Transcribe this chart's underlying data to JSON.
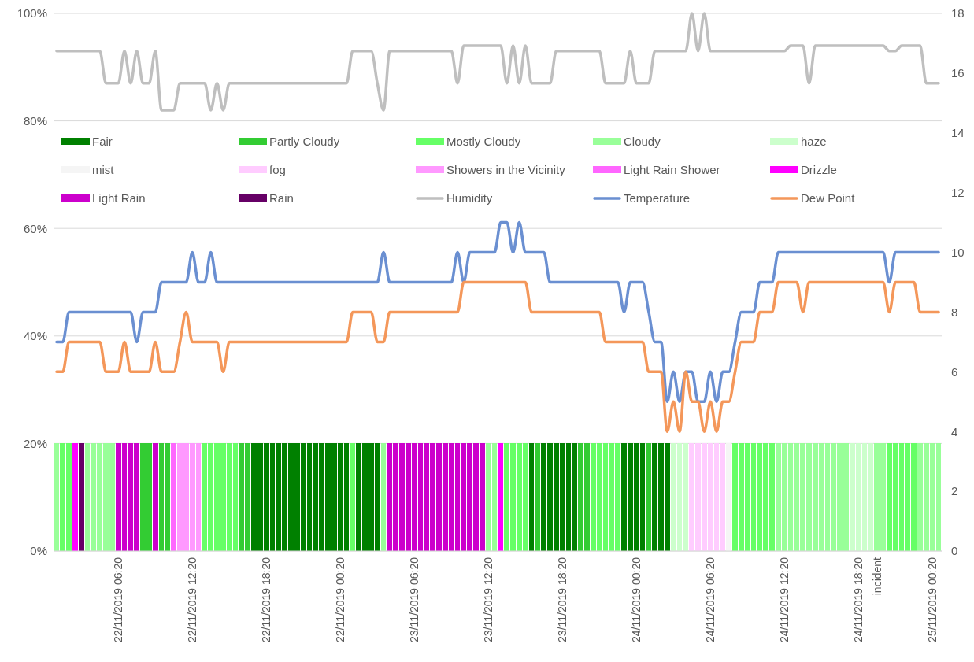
{
  "chart_data": {
    "type": "bar",
    "stacked": true,
    "grid": "y",
    "legend": "top",
    "categories": [
      null,
      null,
      null,
      null,
      null,
      null,
      null,
      null,
      null,
      null,
      "22/11/2019 06:20",
      null,
      null,
      null,
      null,
      null,
      null,
      null,
      null,
      null,
      null,
      null,
      "22/11/2019 12:20",
      null,
      null,
      null,
      null,
      null,
      null,
      null,
      null,
      null,
      null,
      null,
      "22/11/2019 18:20",
      null,
      null,
      null,
      null,
      null,
      null,
      null,
      null,
      null,
      null,
      null,
      "22/11/2019 00:20",
      null,
      null,
      null,
      null,
      null,
      null,
      null,
      null,
      null,
      null,
      null,
      "23/11/2019 06:20",
      null,
      null,
      null,
      null,
      null,
      null,
      null,
      null,
      null,
      null,
      null,
      "23/11/2019 12:20",
      null,
      null,
      null,
      null,
      null,
      null,
      null,
      null,
      null,
      null,
      null,
      "23/11/2019 18:20",
      null,
      null,
      null,
      null,
      null,
      null,
      null,
      null,
      null,
      null,
      null,
      "24/11/2019 00:20",
      null,
      null,
      null,
      null,
      null,
      null,
      null,
      null,
      null,
      null,
      null,
      "24/11/2019 06:20",
      null,
      null,
      null,
      null,
      null,
      null,
      null,
      null,
      null,
      null,
      null,
      "24/11/2019 12:20",
      null,
      null,
      null,
      null,
      null,
      null,
      null,
      null,
      null,
      null,
      null,
      "24/11/2019 18:20",
      null,
      null,
      "incident",
      null,
      null,
      null,
      null,
      null,
      null,
      null,
      null,
      "25/11/2019 00:20",
      null
    ],
    "ylim": [
      0,
      100
    ],
    "yticks": [
      {
        "value": 0,
        "label": "0%"
      },
      {
        "value": 20,
        "label": "20%"
      },
      {
        "value": 40,
        "label": "40%"
      },
      {
        "value": 60,
        "label": "60%"
      },
      {
        "value": 80,
        "label": "80%"
      },
      {
        "value": 100,
        "label": "100%"
      }
    ],
    "y2lim": [
      0,
      18
    ],
    "y2ticks": [
      0,
      2,
      4,
      6,
      8,
      10,
      12,
      14,
      16,
      18
    ],
    "series": [
      {
        "name": "Fair",
        "color": "#008000",
        "values": [
          null,
          null,
          null,
          null,
          null,
          null,
          null,
          null,
          null,
          null,
          null,
          null,
          null,
          null,
          null,
          null,
          null,
          null,
          null,
          null,
          null,
          null,
          null,
          null,
          null,
          null,
          null,
          null,
          null,
          null,
          null,
          null,
          20,
          20,
          20,
          20,
          20,
          20,
          20,
          20,
          20,
          20,
          20,
          20,
          20,
          20,
          20,
          20,
          null,
          20,
          20,
          20,
          20,
          null,
          null,
          null,
          null,
          null,
          null,
          null,
          null,
          null,
          null,
          null,
          null,
          null,
          null,
          null,
          null,
          null,
          null,
          null,
          null,
          null,
          null,
          null,
          null,
          20,
          null,
          20,
          20,
          20,
          20,
          20,
          20,
          null,
          null,
          null,
          null,
          null,
          null,
          null,
          20,
          20,
          20,
          20,
          null,
          20,
          20,
          20,
          null,
          null,
          null,
          null,
          null,
          null,
          null,
          null,
          null,
          null,
          null,
          null,
          null,
          null,
          null,
          null,
          null,
          null,
          null,
          null,
          null,
          null,
          null,
          null,
          null,
          null,
          null,
          null,
          null,
          null,
          null,
          null,
          null,
          null,
          null,
          null,
          null,
          null,
          null,
          null,
          null,
          null,
          null,
          null
        ]
      },
      {
        "name": "Partly Cloudy",
        "color": "#33cc33",
        "values": [
          null,
          null,
          null,
          null,
          null,
          null,
          null,
          null,
          null,
          null,
          null,
          null,
          null,
          null,
          20,
          20,
          null,
          20,
          20,
          null,
          null,
          null,
          null,
          null,
          null,
          null,
          null,
          null,
          null,
          null,
          20,
          20,
          null,
          null,
          null,
          null,
          null,
          null,
          null,
          null,
          null,
          null,
          null,
          null,
          null,
          null,
          null,
          null,
          null,
          null,
          null,
          null,
          null,
          null,
          null,
          null,
          null,
          null,
          null,
          null,
          null,
          null,
          null,
          null,
          null,
          null,
          null,
          null,
          null,
          null,
          null,
          null,
          null,
          null,
          null,
          null,
          null,
          null,
          20,
          null,
          null,
          null,
          null,
          null,
          null,
          20,
          20,
          null,
          null,
          null,
          null,
          null,
          null,
          null,
          null,
          null,
          20,
          null,
          null,
          null,
          null,
          null,
          null,
          null,
          null,
          null,
          null,
          null,
          null,
          null,
          null,
          null,
          null,
          null,
          null,
          null,
          null,
          null,
          null,
          null,
          null,
          null,
          null,
          null,
          null,
          null,
          null,
          null,
          null,
          null,
          null,
          null,
          null,
          null,
          null,
          null,
          null,
          null,
          null,
          null,
          null,
          null,
          null,
          null
        ]
      },
      {
        "name": "Mostly Cloudy",
        "color": "#66ff66",
        "values": [
          null,
          20,
          20,
          null,
          null,
          null,
          null,
          null,
          null,
          null,
          null,
          null,
          null,
          null,
          null,
          null,
          null,
          null,
          null,
          null,
          null,
          null,
          null,
          null,
          20,
          20,
          20,
          20,
          20,
          20,
          null,
          null,
          null,
          null,
          null,
          null,
          null,
          null,
          null,
          null,
          null,
          null,
          null,
          null,
          null,
          null,
          null,
          null,
          20,
          null,
          null,
          null,
          null,
          null,
          null,
          null,
          null,
          null,
          null,
          null,
          null,
          null,
          null,
          null,
          null,
          null,
          null,
          null,
          null,
          null,
          null,
          null,
          null,
          20,
          20,
          20,
          20,
          null,
          null,
          null,
          null,
          null,
          null,
          null,
          null,
          null,
          null,
          20,
          20,
          20,
          20,
          20,
          null,
          null,
          null,
          null,
          null,
          null,
          null,
          null,
          null,
          null,
          null,
          null,
          null,
          null,
          null,
          null,
          null,
          null,
          20,
          20,
          20,
          20,
          20,
          20,
          20,
          null,
          null,
          null,
          null,
          null,
          null,
          null,
          null,
          null,
          null,
          null,
          null,
          null,
          null,
          null,
          null,
          null,
          null,
          20,
          20,
          20,
          20,
          20,
          null,
          null,
          null,
          null
        ]
      },
      {
        "name": "Cloudy",
        "color": "#99ff99",
        "values": [
          20,
          null,
          null,
          null,
          null,
          20,
          20,
          20,
          20,
          20,
          null,
          null,
          null,
          null,
          null,
          null,
          null,
          null,
          null,
          null,
          null,
          null,
          null,
          null,
          null,
          null,
          null,
          null,
          null,
          null,
          null,
          null,
          null,
          null,
          null,
          null,
          null,
          null,
          null,
          null,
          null,
          null,
          null,
          null,
          null,
          null,
          null,
          null,
          null,
          null,
          null,
          null,
          null,
          20,
          null,
          null,
          null,
          null,
          null,
          null,
          null,
          null,
          null,
          null,
          null,
          null,
          null,
          null,
          null,
          null,
          20,
          20,
          null,
          null,
          null,
          null,
          null,
          null,
          null,
          null,
          null,
          null,
          null,
          null,
          null,
          null,
          null,
          null,
          null,
          null,
          null,
          null,
          null,
          null,
          null,
          null,
          null,
          null,
          null,
          null,
          null,
          null,
          null,
          null,
          null,
          null,
          null,
          null,
          null,
          null,
          null,
          null,
          null,
          null,
          null,
          null,
          null,
          20,
          20,
          20,
          20,
          20,
          20,
          20,
          20,
          20,
          20,
          20,
          20,
          null,
          null,
          null,
          null,
          20,
          20,
          null,
          null,
          null,
          null,
          null,
          20,
          20,
          20,
          20
        ]
      },
      {
        "name": "haze",
        "color": "#ccffcc",
        "values": [
          null,
          null,
          null,
          null,
          null,
          null,
          null,
          null,
          null,
          null,
          null,
          null,
          null,
          null,
          null,
          null,
          null,
          null,
          null,
          null,
          null,
          null,
          null,
          null,
          null,
          null,
          null,
          null,
          null,
          null,
          null,
          null,
          null,
          null,
          null,
          null,
          null,
          null,
          null,
          null,
          null,
          null,
          null,
          null,
          null,
          null,
          null,
          null,
          null,
          null,
          null,
          null,
          null,
          null,
          null,
          null,
          null,
          null,
          null,
          null,
          null,
          null,
          null,
          null,
          null,
          null,
          null,
          null,
          null,
          null,
          null,
          null,
          null,
          null,
          null,
          null,
          null,
          null,
          null,
          null,
          null,
          null,
          null,
          null,
          null,
          null,
          null,
          null,
          null,
          null,
          null,
          null,
          null,
          null,
          null,
          null,
          null,
          null,
          null,
          null,
          20,
          20,
          20,
          null,
          null,
          null,
          null,
          null,
          null,
          null,
          null,
          null,
          null,
          null,
          null,
          null,
          null,
          null,
          null,
          null,
          null,
          null,
          null,
          null,
          null,
          null,
          null,
          null,
          null,
          20,
          20,
          20,
          20,
          null,
          null,
          null,
          null,
          null,
          null,
          null,
          null,
          null,
          null,
          null
        ]
      },
      {
        "name": "mist",
        "color": "#f5f5f5",
        "values": [
          null,
          null,
          null,
          null,
          null,
          null,
          null,
          null,
          null,
          null,
          null,
          null,
          null,
          null,
          null,
          null,
          null,
          null,
          null,
          null,
          null,
          null,
          null,
          null,
          null,
          null,
          null,
          null,
          null,
          null,
          null,
          null,
          null,
          null,
          null,
          null,
          null,
          null,
          null,
          null,
          null,
          null,
          null,
          null,
          null,
          null,
          null,
          null,
          null,
          null,
          null,
          null,
          null,
          null,
          null,
          null,
          null,
          null,
          null,
          null,
          null,
          null,
          null,
          null,
          null,
          null,
          null,
          null,
          null,
          null,
          null,
          null,
          null,
          null,
          null,
          null,
          null,
          null,
          null,
          null,
          null,
          null,
          null,
          null,
          null,
          null,
          null,
          null,
          null,
          null,
          null,
          null,
          null,
          null,
          null,
          null,
          null,
          null,
          null,
          null,
          null,
          null,
          null,
          null,
          null,
          null,
          null,
          null,
          null,
          20,
          null,
          null,
          null,
          null,
          null,
          null,
          null,
          null,
          null,
          null,
          null,
          null,
          null,
          null,
          null,
          null,
          null,
          null,
          null,
          null,
          null,
          null,
          null,
          null,
          null,
          null,
          null,
          null,
          null,
          null,
          null,
          null,
          null,
          null
        ]
      },
      {
        "name": "fog",
        "color": "#ffccff",
        "values": [
          null,
          null,
          null,
          null,
          null,
          null,
          null,
          null,
          null,
          null,
          null,
          null,
          null,
          null,
          null,
          null,
          null,
          null,
          null,
          null,
          null,
          null,
          null,
          null,
          null,
          null,
          null,
          null,
          null,
          null,
          null,
          null,
          null,
          null,
          null,
          null,
          null,
          null,
          null,
          null,
          null,
          null,
          null,
          null,
          null,
          null,
          null,
          null,
          null,
          null,
          null,
          null,
          null,
          null,
          null,
          null,
          null,
          null,
          null,
          null,
          null,
          null,
          null,
          null,
          null,
          null,
          null,
          null,
          null,
          null,
          null,
          null,
          null,
          null,
          null,
          null,
          null,
          null,
          null,
          null,
          null,
          null,
          null,
          null,
          null,
          null,
          null,
          null,
          null,
          null,
          null,
          null,
          null,
          null,
          null,
          null,
          null,
          null,
          null,
          null,
          null,
          null,
          null,
          20,
          20,
          20,
          20,
          20,
          20,
          null,
          null,
          null,
          null,
          null,
          null,
          null,
          null,
          null,
          null,
          null,
          null,
          null,
          null,
          null,
          null,
          null,
          null,
          null,
          null,
          null,
          null,
          null,
          null,
          null,
          null,
          null,
          null,
          null,
          null,
          null,
          null,
          null,
          null,
          null
        ]
      },
      {
        "name": "Showers in the Vicinity",
        "color": "#ff99ff",
        "values": [
          null,
          null,
          null,
          null,
          null,
          null,
          null,
          null,
          null,
          null,
          null,
          null,
          null,
          null,
          null,
          null,
          null,
          null,
          null,
          null,
          20,
          20,
          20,
          20,
          null,
          null,
          null,
          null,
          null,
          null,
          null,
          null,
          null,
          null,
          null,
          null,
          null,
          null,
          null,
          null,
          null,
          null,
          null,
          null,
          null,
          null,
          null,
          null,
          null,
          null,
          null,
          null,
          null,
          null,
          null,
          null,
          null,
          null,
          null,
          null,
          null,
          null,
          null,
          null,
          null,
          null,
          null,
          null,
          null,
          null,
          null,
          null,
          null,
          null,
          null,
          null,
          null,
          null,
          null,
          null,
          null,
          null,
          null,
          null,
          null,
          null,
          null,
          null,
          null,
          null,
          null,
          null,
          null,
          null,
          null,
          null,
          null,
          null,
          null,
          null,
          null,
          null,
          null,
          null,
          null,
          null,
          null,
          null,
          null,
          null,
          null,
          null,
          null,
          null,
          null,
          null,
          null,
          null,
          null,
          null,
          null,
          null,
          null,
          null,
          null,
          null,
          null,
          null,
          null,
          null,
          null,
          null,
          null,
          null,
          null,
          null,
          null,
          null,
          null,
          null,
          null,
          null,
          null,
          null
        ]
      },
      {
        "name": "Light Rain Shower",
        "color": "#ff66ff",
        "values": [
          null,
          null,
          null,
          null,
          null,
          null,
          null,
          null,
          null,
          null,
          null,
          null,
          null,
          null,
          null,
          null,
          null,
          null,
          null,
          20,
          null,
          null,
          null,
          null,
          null,
          null,
          null,
          null,
          null,
          null,
          null,
          null,
          null,
          null,
          null,
          null,
          null,
          null,
          null,
          null,
          null,
          null,
          null,
          null,
          null,
          null,
          null,
          null,
          null,
          null,
          null,
          null,
          null,
          null,
          null,
          null,
          null,
          null,
          null,
          null,
          null,
          null,
          null,
          null,
          null,
          null,
          null,
          null,
          null,
          null,
          null,
          null,
          null,
          null,
          null,
          null,
          null,
          null,
          null,
          null,
          null,
          null,
          null,
          null,
          null,
          null,
          null,
          null,
          null,
          null,
          null,
          null,
          null,
          null,
          null,
          null,
          null,
          null,
          null,
          null,
          null,
          null,
          null,
          null,
          null,
          null,
          null,
          null,
          null,
          null,
          null,
          null,
          null,
          null,
          null,
          null,
          null,
          null,
          null,
          null,
          null,
          null,
          null,
          null,
          null,
          null,
          null,
          null,
          null,
          null,
          null,
          null,
          null,
          null,
          null,
          null,
          null,
          null,
          null,
          null,
          null,
          null,
          null,
          null
        ]
      },
      {
        "name": "Drizzle",
        "color": "#ff00ff",
        "values": [
          null,
          null,
          null,
          20,
          null,
          null,
          null,
          null,
          null,
          null,
          null,
          null,
          null,
          null,
          null,
          null,
          null,
          null,
          null,
          null,
          null,
          null,
          null,
          null,
          null,
          null,
          null,
          null,
          null,
          null,
          null,
          null,
          null,
          null,
          null,
          null,
          null,
          null,
          null,
          null,
          null,
          null,
          null,
          null,
          null,
          null,
          null,
          null,
          null,
          null,
          null,
          null,
          null,
          null,
          null,
          null,
          null,
          null,
          null,
          null,
          null,
          null,
          null,
          null,
          null,
          null,
          null,
          null,
          null,
          null,
          null,
          null,
          20,
          null,
          null,
          null,
          null,
          null,
          null,
          null,
          null,
          null,
          null,
          null,
          null,
          null,
          null,
          null,
          null,
          null,
          null,
          null,
          null,
          null,
          null,
          null,
          null,
          null,
          null,
          null,
          null,
          null,
          null,
          null,
          null,
          null,
          null,
          null,
          null,
          null,
          null,
          null,
          null,
          null,
          null,
          null,
          null,
          null,
          null,
          null,
          null,
          null,
          null,
          null,
          null,
          null,
          null,
          null,
          null,
          null,
          null,
          null,
          null,
          null,
          null,
          null,
          null,
          null,
          null,
          null,
          null,
          null,
          null,
          null
        ]
      },
      {
        "name": "Light Rain",
        "color": "#cc00cc",
        "values": [
          null,
          null,
          null,
          null,
          null,
          null,
          null,
          null,
          null,
          null,
          20,
          20,
          20,
          20,
          null,
          null,
          20,
          null,
          null,
          null,
          null,
          null,
          null,
          null,
          null,
          null,
          null,
          null,
          null,
          null,
          null,
          null,
          null,
          null,
          null,
          null,
          null,
          null,
          null,
          null,
          null,
          null,
          null,
          null,
          null,
          null,
          null,
          null,
          null,
          null,
          null,
          null,
          null,
          null,
          20,
          20,
          20,
          20,
          20,
          20,
          20,
          20,
          20,
          20,
          20,
          20,
          20,
          20,
          20,
          20,
          null,
          null,
          null,
          null,
          null,
          null,
          null,
          null,
          null,
          null,
          null,
          null,
          null,
          null,
          null,
          null,
          null,
          null,
          null,
          null,
          null,
          null,
          null,
          null,
          null,
          null,
          null,
          null,
          null,
          null,
          null,
          null,
          null,
          null,
          null,
          null,
          null,
          null,
          null,
          null,
          null,
          null,
          null,
          null,
          null,
          null,
          null,
          null,
          null,
          null,
          null,
          null,
          null,
          null,
          null,
          null,
          null,
          null,
          null,
          null,
          null,
          null,
          null,
          null,
          null,
          null,
          null,
          null,
          null,
          null,
          null,
          null,
          null,
          null
        ]
      },
      {
        "name": "Rain",
        "color": "#660066",
        "values": [
          null,
          null,
          null,
          null,
          20,
          null,
          null,
          null,
          null,
          null,
          null,
          null,
          null,
          null,
          null,
          null,
          null,
          null,
          null,
          null,
          null,
          null,
          null,
          null,
          null,
          null,
          null,
          null,
          null,
          null,
          null,
          null,
          null,
          null,
          null,
          null,
          null,
          null,
          null,
          null,
          null,
          null,
          null,
          null,
          null,
          null,
          null,
          null,
          null,
          null,
          null,
          null,
          null,
          null,
          null,
          null,
          null,
          null,
          null,
          null,
          null,
          null,
          null,
          null,
          null,
          null,
          null,
          null,
          null,
          null,
          null,
          null,
          null,
          null,
          null,
          null,
          null,
          null,
          null,
          null,
          null,
          null,
          null,
          null,
          null,
          null,
          null,
          null,
          null,
          null,
          null,
          null,
          null,
          null,
          null,
          null,
          null,
          null,
          null,
          null,
          null,
          null,
          null,
          null,
          null,
          null,
          null,
          null,
          null,
          null,
          null,
          null,
          null,
          null,
          null,
          null,
          null,
          null,
          null,
          null,
          null,
          null,
          null,
          null,
          null,
          null,
          null,
          null,
          null,
          null,
          null,
          null,
          null,
          null,
          null,
          null,
          null,
          null,
          null,
          null,
          null,
          null,
          null,
          null
        ]
      },
      {
        "name": "Humidity",
        "type": "line",
        "color": "#bfbfbf",
        "values": [
          93,
          93,
          93,
          93,
          93,
          93,
          93,
          93,
          87,
          87,
          87,
          93,
          87,
          93,
          87,
          87,
          93,
          82,
          82,
          82,
          87,
          87,
          87,
          87,
          87,
          82,
          87,
          82,
          87,
          87,
          87,
          87,
          87,
          87,
          87,
          87,
          87,
          87,
          87,
          87,
          87,
          87,
          87,
          87,
          87,
          87,
          87,
          87,
          93,
          93,
          93,
          93,
          87,
          82,
          93,
          93,
          93,
          93,
          93,
          93,
          93,
          93,
          93,
          93,
          93,
          87,
          94,
          94,
          94,
          94,
          94,
          94,
          94,
          87,
          94,
          87,
          94,
          87,
          87,
          87,
          87,
          93,
          93,
          93,
          93,
          93,
          93,
          93,
          93,
          87,
          87,
          87,
          87,
          93,
          87,
          87,
          87,
          93,
          93,
          93,
          93,
          93,
          93,
          100,
          93,
          100,
          93,
          93,
          93,
          93,
          93,
          93,
          93,
          93,
          93,
          93,
          93,
          93,
          93,
          94,
          94,
          94,
          87,
          94,
          94,
          94,
          94,
          94,
          94,
          94,
          94,
          94,
          94,
          94,
          94,
          93,
          93,
          94,
          94,
          94,
          94,
          87,
          87,
          87
        ]
      },
      {
        "name": "Temperature",
        "type": "line",
        "axis": "y2",
        "color": "#6a8fd1",
        "values": [
          7,
          7,
          8,
          8,
          8,
          8,
          8,
          8,
          8,
          8,
          8,
          8,
          8,
          7,
          8,
          8,
          8,
          9,
          9,
          9,
          9,
          9,
          10,
          9,
          9,
          10,
          9,
          9,
          9,
          9,
          9,
          9,
          9,
          9,
          9,
          9,
          9,
          9,
          9,
          9,
          9,
          9,
          9,
          9,
          9,
          9,
          9,
          9,
          9,
          9,
          9,
          9,
          9,
          10,
          9,
          9,
          9,
          9,
          9,
          9,
          9,
          9,
          9,
          9,
          9,
          10,
          9,
          10,
          10,
          10,
          10,
          10,
          11,
          11,
          10,
          11,
          10,
          10,
          10,
          10,
          9,
          9,
          9,
          9,
          9,
          9,
          9,
          9,
          9,
          9,
          9,
          9,
          8,
          9,
          9,
          9,
          8,
          7,
          7,
          5,
          6,
          5,
          6,
          6,
          5,
          5,
          6,
          5,
          6,
          6,
          7,
          8,
          8,
          8,
          9,
          9,
          9,
          10,
          10,
          10,
          10,
          10,
          10,
          10,
          10,
          10,
          10,
          10,
          10,
          10,
          10,
          10,
          10,
          10,
          10,
          9,
          10,
          10,
          10,
          10,
          10,
          10,
          10,
          10
        ]
      },
      {
        "name": "Dew Point",
        "type": "line",
        "axis": "y2",
        "color": "#f4975a",
        "values": [
          6,
          6,
          7,
          7,
          7,
          7,
          7,
          7,
          6,
          6,
          6,
          7,
          6,
          6,
          6,
          6,
          7,
          6,
          6,
          6,
          7,
          8,
          7,
          7,
          7,
          7,
          7,
          6,
          7,
          7,
          7,
          7,
          7,
          7,
          7,
          7,
          7,
          7,
          7,
          7,
          7,
          7,
          7,
          7,
          7,
          7,
          7,
          7,
          8,
          8,
          8,
          8,
          7,
          7,
          8,
          8,
          8,
          8,
          8,
          8,
          8,
          8,
          8,
          8,
          8,
          8,
          9,
          9,
          9,
          9,
          9,
          9,
          9,
          9,
          9,
          9,
          9,
          8,
          8,
          8,
          8,
          8,
          8,
          8,
          8,
          8,
          8,
          8,
          8,
          7,
          7,
          7,
          7,
          7,
          7,
          7,
          6,
          6,
          6,
          4,
          5,
          4,
          6,
          5,
          5,
          4,
          5,
          4,
          5,
          5,
          6,
          7,
          7,
          7,
          8,
          8,
          8,
          9,
          9,
          9,
          9,
          8,
          9,
          9,
          9,
          9,
          9,
          9,
          9,
          9,
          9,
          9,
          9,
          9,
          9,
          8,
          9,
          9,
          9,
          9,
          8,
          8,
          8,
          8
        ]
      }
    ]
  }
}
